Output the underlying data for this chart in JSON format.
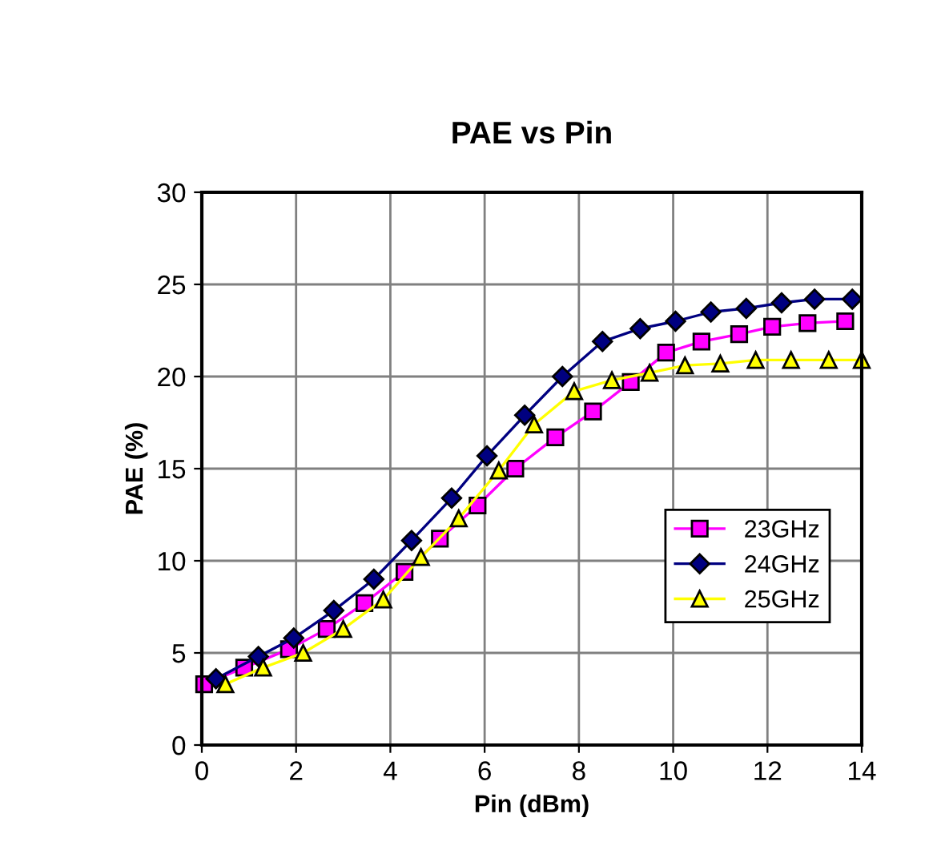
{
  "chart_data": {
    "type": "line",
    "title": "PAE vs Pin",
    "xlabel": "Pin (dBm)",
    "ylabel": "PAE (%)",
    "xlim": [
      0,
      14
    ],
    "xticks": [
      0,
      2,
      4,
      6,
      8,
      10,
      12,
      14
    ],
    "ylim": [
      0,
      30
    ],
    "yticks": [
      0,
      5,
      10,
      15,
      20,
      25,
      30
    ],
    "grid": true,
    "legend": "bottom right",
    "line_style": "solid",
    "series": [
      {
        "name": "23GHz",
        "color": "#ff00ff",
        "marker": "square",
        "x": [
          0.05,
          0.9,
          1.85,
          2.65,
          3.45,
          4.3,
          5.05,
          5.85,
          6.65,
          7.5,
          8.3,
          9.1,
          9.85,
          10.6,
          11.4,
          12.1,
          12.85,
          13.65
        ],
        "values": [
          3.3,
          4.2,
          5.2,
          6.3,
          7.7,
          9.4,
          11.2,
          13.0,
          15.0,
          16.7,
          18.1,
          19.7,
          21.3,
          21.9,
          22.3,
          22.7,
          22.9,
          23.0
        ]
      },
      {
        "name": "24GHz",
        "color": "#000080",
        "marker": "diamond",
        "x": [
          0.3,
          1.2,
          1.95,
          2.8,
          3.65,
          4.45,
          5.3,
          6.05,
          6.85,
          7.65,
          8.5,
          9.3,
          10.05,
          10.8,
          11.55,
          12.3,
          13.0,
          13.8
        ],
        "values": [
          3.6,
          4.8,
          5.8,
          7.3,
          9.0,
          11.1,
          13.4,
          15.7,
          17.9,
          20.0,
          21.9,
          22.6,
          23.0,
          23.5,
          23.7,
          24.0,
          24.2,
          24.2
        ]
      },
      {
        "name": "25GHz",
        "color": "#ffff00",
        "marker": "triangle",
        "x": [
          0.5,
          1.3,
          2.15,
          3.0,
          3.85,
          4.65,
          5.45,
          6.3,
          7.05,
          7.9,
          8.7,
          9.5,
          10.25,
          11.0,
          11.75,
          12.5,
          13.3,
          14.0
        ],
        "values": [
          3.3,
          4.2,
          5.0,
          6.3,
          7.9,
          10.2,
          12.3,
          14.9,
          17.4,
          19.2,
          19.8,
          20.2,
          20.6,
          20.7,
          20.9,
          20.9,
          20.9,
          20.9
        ]
      }
    ]
  }
}
